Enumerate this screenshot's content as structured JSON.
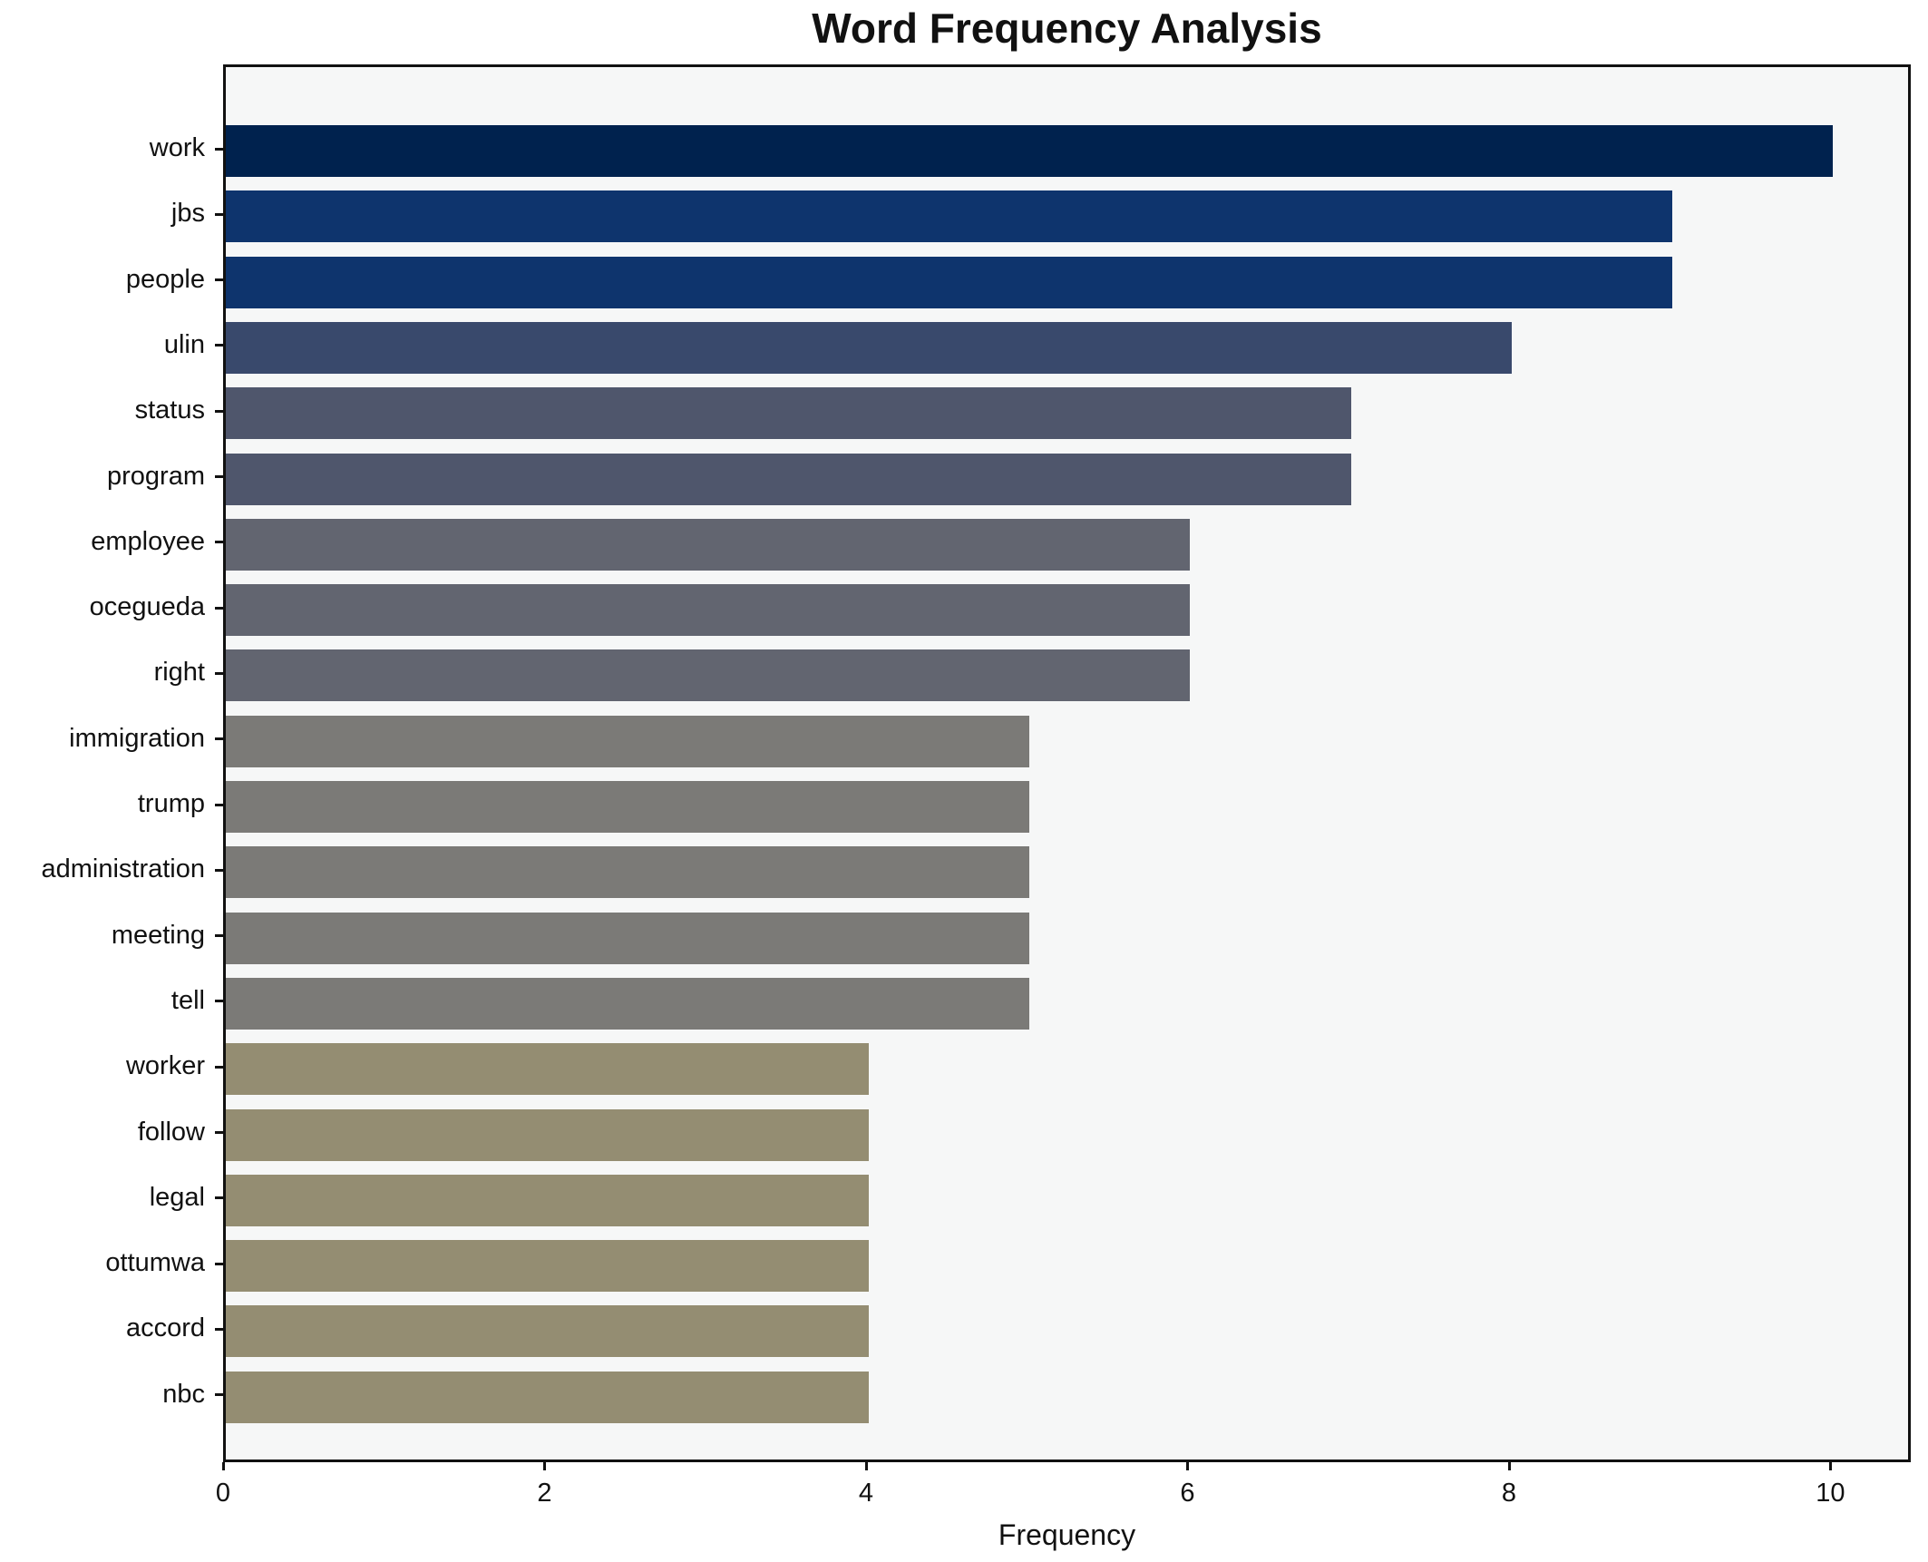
{
  "chart_data": {
    "type": "bar",
    "orientation": "horizontal",
    "title": "Word Frequency Analysis",
    "xlabel": "Frequency",
    "ylabel": "",
    "categories": [
      "work",
      "jbs",
      "people",
      "ulin",
      "status",
      "program",
      "employee",
      "ocegueda",
      "right",
      "immigration",
      "trump",
      "administration",
      "meeting",
      "tell",
      "worker",
      "follow",
      "legal",
      "ottumwa",
      "accord",
      "nbc"
    ],
    "values": [
      10,
      9,
      9,
      8,
      7,
      7,
      6,
      6,
      6,
      5,
      5,
      5,
      5,
      5,
      4,
      4,
      4,
      4,
      4,
      4
    ],
    "bar_colors": [
      "#00224e",
      "#0e346d",
      "#0e346d",
      "#39496c",
      "#4f566c",
      "#4f566c",
      "#626570",
      "#626570",
      "#626570",
      "#7b7a77",
      "#7b7a77",
      "#7b7a77",
      "#7b7a77",
      "#7b7a77",
      "#948d72",
      "#948d72",
      "#948d72",
      "#948d72",
      "#948d72",
      "#948d72"
    ],
    "xlim": [
      0,
      10.5
    ],
    "xticks": [
      0,
      2,
      4,
      6,
      8,
      10
    ],
    "grid": false,
    "legend": "none",
    "plot_background": "#f6f7f7",
    "figure_background": "#ffffff",
    "spine_color": "#111111"
  }
}
